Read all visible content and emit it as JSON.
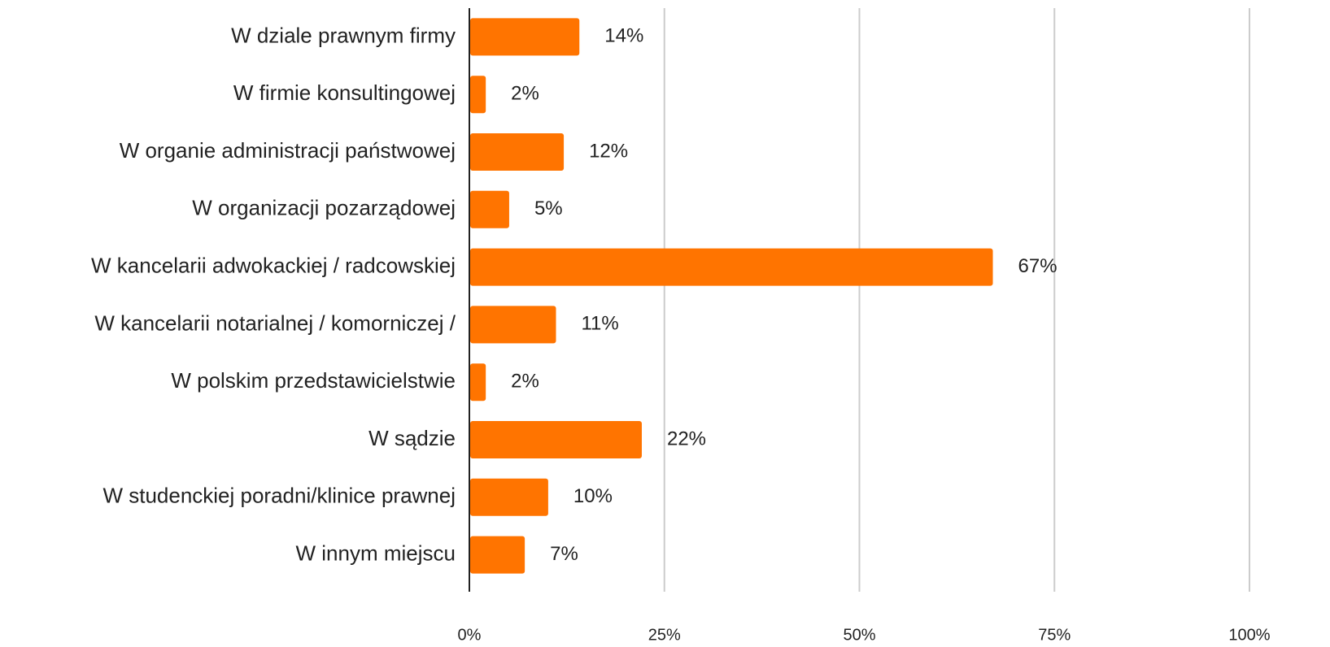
{
  "chart_data": {
    "type": "hbar",
    "categories": [
      "W dziale prawnym firmy",
      "W firmie konsultingowej",
      "W organie administracji państwowej",
      "W organizacji pozarządowej",
      "W kancelarii adwokackiej / radcowskiej",
      "W kancelarii notarialnej / komorniczej /",
      "W polskim przedstawicielstwie",
      "W sądzie",
      "W studenckiej poradni/klinice prawnej",
      "W innym miejscu"
    ],
    "values": [
      14,
      2,
      12,
      5,
      67,
      11,
      2,
      22,
      10,
      7
    ],
    "value_labels": [
      "14%",
      "2%",
      "12%",
      "5%",
      "67%",
      "11%",
      "2%",
      "22%",
      "10%",
      "7%"
    ],
    "color": "#ff7400",
    "xlim": [
      0,
      100
    ],
    "xticks": [
      {
        "value": 0,
        "label": "0%"
      },
      {
        "value": 25,
        "label": "25%"
      },
      {
        "value": 50,
        "label": "50%"
      },
      {
        "value": 75,
        "label": "75%"
      },
      {
        "value": 100,
        "label": "100%"
      }
    ],
    "grid": true
  }
}
